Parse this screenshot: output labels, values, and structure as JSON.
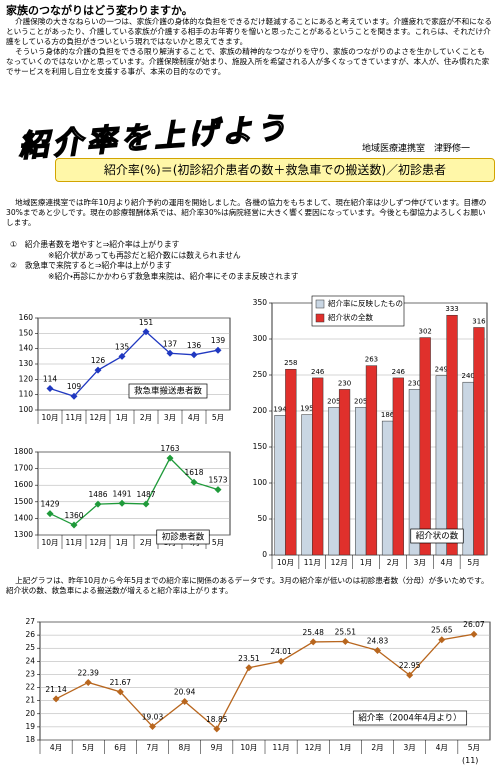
{
  "heading": "家族のつながりはどう変わりますか。",
  "intro": [
    "介護保険の大きなねらいの一つは、家族介護の身体的な負担をできるだけ軽減することにあると考えています。介護疲れで家庭が不和になるということがあったり、介護している家族が介護する相手のお年寄りを憎いと思ったことがあるということを聞きます。これらは、それだけ介護をしている方の負担がきついという現れではないかと思えてきます。",
    "そういう身体的な介護の負担をできる限り解消することで、家族の精神的なつながりを守り、家族のつながりのよさを生かしていくこともなっていくのではないかと思っています。介護保険制度が始まり、施設入所を希望される人が多くなってきていますが、本人が、住み慣れた家でサービスを利用し自立を支援する事が、本来の目的なのです。"
  ],
  "title": "紹介率を上げよう",
  "author": "地域医療連携室　津野修一",
  "formula": "紹介率(%)＝(初診紹介患者の数＋救急車での搬送数)／初診患者",
  "body": "地域医療連携室では昨年10月より紹介予約の運用を開始しました。各機の協力をもちまして、現在紹介率は少しずつ伸びています。目標の30%まであと少しです。現在の診療報酬体系では、紹介率30%は病院経営に大きく響く要因になっています。今後とも御協力よろしくお願いします。",
  "notes": [
    "①　紹介患者数を増やすと⇒紹介率は上がります",
    "※紹介状があっても再診だと紹介数には数えられません",
    "②　救急車で来院すると⇒紹介率は上がります",
    "※紹介・再診にかかわらず救急車来院は、紹介率にそのまま反映されます"
  ],
  "chart_data": [
    {
      "type": "line",
      "title": "救急車搬送患者数",
      "categories": [
        "10月",
        "11月",
        "12月",
        "1月",
        "2月",
        "3月",
        "4月",
        "5月"
      ],
      "series": [
        {
          "name": "救急車搬送患者数",
          "color": "#2038c0",
          "values": [
            114,
            109,
            126,
            135,
            151,
            137,
            136,
            139
          ]
        }
      ],
      "ylim": [
        100,
        160
      ],
      "yticks": [
        100,
        110,
        120,
        130,
        140,
        150,
        160
      ],
      "grid": true
    },
    {
      "type": "line",
      "title": "初診患者数",
      "categories": [
        "10月",
        "11月",
        "12月",
        "1月",
        "2月",
        "3月",
        "4月",
        "5月"
      ],
      "series": [
        {
          "name": "初診患者数",
          "color": "#1f9a3a",
          "values": [
            1429,
            1360,
            1486,
            1491,
            1487,
            1763,
            1618,
            1573
          ]
        }
      ],
      "ylim": [
        1300,
        1800
      ],
      "yticks": [
        1300,
        1400,
        1500,
        1600,
        1700,
        1800
      ],
      "grid": true
    },
    {
      "type": "bar",
      "title": "紹介状の数",
      "categories": [
        "10月",
        "11月",
        "12月",
        "1月",
        "2月",
        "3月",
        "4月",
        "5月"
      ],
      "series": [
        {
          "name": "紹介率に反映したもの",
          "color": "#c9d6e3",
          "values": [
            194,
            195,
            205,
            205,
            186,
            230,
            249,
            240
          ]
        },
        {
          "name": "紹介状の全数",
          "color": "#e0302c",
          "values": [
            258,
            246,
            230,
            263,
            246,
            302,
            333,
            316
          ]
        }
      ],
      "ylim": [
        0,
        350
      ],
      "yticks": [
        0,
        50,
        100,
        150,
        200,
        250,
        300,
        350
      ],
      "grid": true
    },
    {
      "type": "line",
      "title": "紹介率（2004年4月より）",
      "categories": [
        "4月",
        "5月",
        "6月",
        "7月",
        "8月",
        "9月",
        "10月",
        "11月",
        "12月",
        "1月",
        "2月",
        "3月",
        "4月",
        "5月"
      ],
      "series": [
        {
          "name": "紹介率",
          "color": "#b8661e",
          "values": [
            21.14,
            22.39,
            21.67,
            19.03,
            20.94,
            18.85,
            23.51,
            24.01,
            25.48,
            25.51,
            24.83,
            22.95,
            25.65,
            26.07
          ]
        }
      ],
      "ylim": [
        18,
        27
      ],
      "yticks": [
        18,
        19,
        20,
        21,
        22,
        23,
        24,
        25,
        26,
        27
      ],
      "grid": true
    }
  ],
  "summary": "上記グラフは、昨年10月から今年5月までの紹介率に関係のあるデータです。3月の紹介率が低いのは初診患者数（分母）が多いためです。紹介状の数、救急車による搬送数が増えると紹介率は上がります。",
  "page_number": "(11)"
}
